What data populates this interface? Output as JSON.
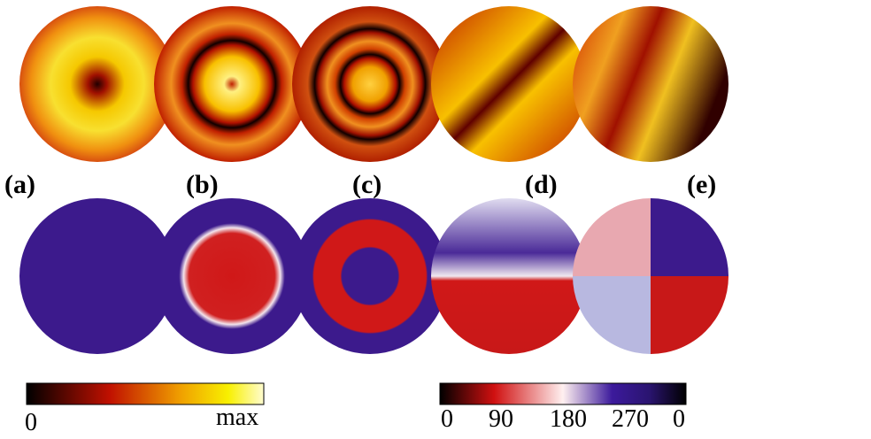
{
  "panels": [
    {
      "label": "(a)"
    },
    {
      "label": "(b)"
    },
    {
      "label": "(c)"
    },
    {
      "label": "(d)"
    },
    {
      "label": "(e)"
    }
  ],
  "colorbars": [
    {
      "ticks": [
        "0",
        "max"
      ]
    },
    {
      "ticks": [
        "0",
        "90",
        "180",
        "270",
        "0"
      ]
    }
  ]
}
